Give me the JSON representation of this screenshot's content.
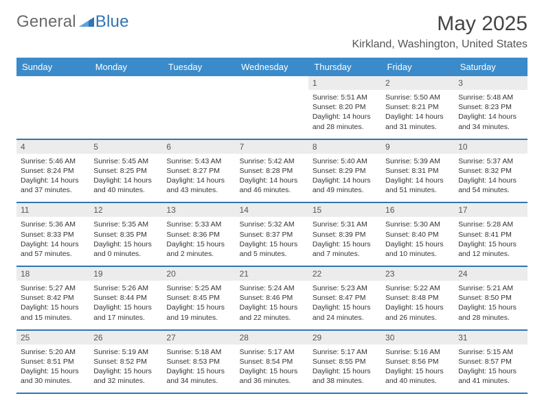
{
  "brand": {
    "general": "General",
    "blue": "Blue"
  },
  "title": {
    "month": "May 2025",
    "location": "Kirkland, Washington, United States"
  },
  "colors": {
    "header_bg": "#3b8bca",
    "header_text": "#ffffff",
    "row_divider": "#2f74b5",
    "daynum_bg": "#ececec",
    "text": "#333333",
    "logo_gray": "#6a6a6a",
    "logo_blue": "#2f74b5",
    "triangle": "#2f74b5",
    "background": "#ffffff"
  },
  "weekdays": [
    "Sunday",
    "Monday",
    "Tuesday",
    "Wednesday",
    "Thursday",
    "Friday",
    "Saturday"
  ],
  "weeks": [
    [
      null,
      null,
      null,
      null,
      {
        "n": "1",
        "sunrise": "5:51 AM",
        "sunset": "8:20 PM",
        "daylight": "14 hours and 28 minutes."
      },
      {
        "n": "2",
        "sunrise": "5:50 AM",
        "sunset": "8:21 PM",
        "daylight": "14 hours and 31 minutes."
      },
      {
        "n": "3",
        "sunrise": "5:48 AM",
        "sunset": "8:23 PM",
        "daylight": "14 hours and 34 minutes."
      }
    ],
    [
      {
        "n": "4",
        "sunrise": "5:46 AM",
        "sunset": "8:24 PM",
        "daylight": "14 hours and 37 minutes."
      },
      {
        "n": "5",
        "sunrise": "5:45 AM",
        "sunset": "8:25 PM",
        "daylight": "14 hours and 40 minutes."
      },
      {
        "n": "6",
        "sunrise": "5:43 AM",
        "sunset": "8:27 PM",
        "daylight": "14 hours and 43 minutes."
      },
      {
        "n": "7",
        "sunrise": "5:42 AM",
        "sunset": "8:28 PM",
        "daylight": "14 hours and 46 minutes."
      },
      {
        "n": "8",
        "sunrise": "5:40 AM",
        "sunset": "8:29 PM",
        "daylight": "14 hours and 49 minutes."
      },
      {
        "n": "9",
        "sunrise": "5:39 AM",
        "sunset": "8:31 PM",
        "daylight": "14 hours and 51 minutes."
      },
      {
        "n": "10",
        "sunrise": "5:37 AM",
        "sunset": "8:32 PM",
        "daylight": "14 hours and 54 minutes."
      }
    ],
    [
      {
        "n": "11",
        "sunrise": "5:36 AM",
        "sunset": "8:33 PM",
        "daylight": "14 hours and 57 minutes."
      },
      {
        "n": "12",
        "sunrise": "5:35 AM",
        "sunset": "8:35 PM",
        "daylight": "15 hours and 0 minutes."
      },
      {
        "n": "13",
        "sunrise": "5:33 AM",
        "sunset": "8:36 PM",
        "daylight": "15 hours and 2 minutes."
      },
      {
        "n": "14",
        "sunrise": "5:32 AM",
        "sunset": "8:37 PM",
        "daylight": "15 hours and 5 minutes."
      },
      {
        "n": "15",
        "sunrise": "5:31 AM",
        "sunset": "8:39 PM",
        "daylight": "15 hours and 7 minutes."
      },
      {
        "n": "16",
        "sunrise": "5:30 AM",
        "sunset": "8:40 PM",
        "daylight": "15 hours and 10 minutes."
      },
      {
        "n": "17",
        "sunrise": "5:28 AM",
        "sunset": "8:41 PM",
        "daylight": "15 hours and 12 minutes."
      }
    ],
    [
      {
        "n": "18",
        "sunrise": "5:27 AM",
        "sunset": "8:42 PM",
        "daylight": "15 hours and 15 minutes."
      },
      {
        "n": "19",
        "sunrise": "5:26 AM",
        "sunset": "8:44 PM",
        "daylight": "15 hours and 17 minutes."
      },
      {
        "n": "20",
        "sunrise": "5:25 AM",
        "sunset": "8:45 PM",
        "daylight": "15 hours and 19 minutes."
      },
      {
        "n": "21",
        "sunrise": "5:24 AM",
        "sunset": "8:46 PM",
        "daylight": "15 hours and 22 minutes."
      },
      {
        "n": "22",
        "sunrise": "5:23 AM",
        "sunset": "8:47 PM",
        "daylight": "15 hours and 24 minutes."
      },
      {
        "n": "23",
        "sunrise": "5:22 AM",
        "sunset": "8:48 PM",
        "daylight": "15 hours and 26 minutes."
      },
      {
        "n": "24",
        "sunrise": "5:21 AM",
        "sunset": "8:50 PM",
        "daylight": "15 hours and 28 minutes."
      }
    ],
    [
      {
        "n": "25",
        "sunrise": "5:20 AM",
        "sunset": "8:51 PM",
        "daylight": "15 hours and 30 minutes."
      },
      {
        "n": "26",
        "sunrise": "5:19 AM",
        "sunset": "8:52 PM",
        "daylight": "15 hours and 32 minutes."
      },
      {
        "n": "27",
        "sunrise": "5:18 AM",
        "sunset": "8:53 PM",
        "daylight": "15 hours and 34 minutes."
      },
      {
        "n": "28",
        "sunrise": "5:17 AM",
        "sunset": "8:54 PM",
        "daylight": "15 hours and 36 minutes."
      },
      {
        "n": "29",
        "sunrise": "5:17 AM",
        "sunset": "8:55 PM",
        "daylight": "15 hours and 38 minutes."
      },
      {
        "n": "30",
        "sunrise": "5:16 AM",
        "sunset": "8:56 PM",
        "daylight": "15 hours and 40 minutes."
      },
      {
        "n": "31",
        "sunrise": "5:15 AM",
        "sunset": "8:57 PM",
        "daylight": "15 hours and 41 minutes."
      }
    ]
  ]
}
